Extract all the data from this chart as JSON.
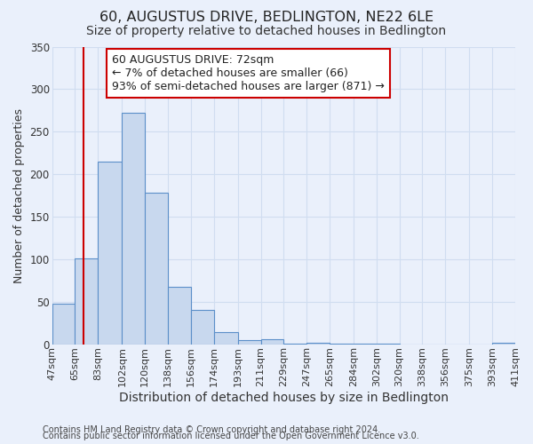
{
  "title": "60, AUGUSTUS DRIVE, BEDLINGTON, NE22 6LE",
  "subtitle": "Size of property relative to detached houses in Bedlington",
  "xlabel": "Distribution of detached houses by size in Bedlington",
  "ylabel": "Number of detached properties",
  "footer_line1": "Contains HM Land Registry data © Crown copyright and database right 2024.",
  "footer_line2": "Contains public sector information licensed under the Open Government Licence v3.0.",
  "bar_edges": [
    47,
    65,
    83,
    102,
    120,
    138,
    156,
    174,
    193,
    211,
    229,
    247,
    265,
    284,
    302,
    320,
    338,
    356,
    375,
    393,
    411
  ],
  "bar_heights": [
    48,
    101,
    215,
    272,
    178,
    67,
    40,
    14,
    5,
    6,
    1,
    2,
    1,
    1,
    1,
    0,
    0,
    0,
    0,
    2
  ],
  "tick_labels": [
    "47sqm",
    "65sqm",
    "83sqm",
    "102sqm",
    "120sqm",
    "138sqm",
    "156sqm",
    "174sqm",
    "193sqm",
    "211sqm",
    "229sqm",
    "247sqm",
    "265sqm",
    "284sqm",
    "302sqm",
    "320sqm",
    "338sqm",
    "356sqm",
    "375sqm",
    "393sqm",
    "411sqm"
  ],
  "ylim": [
    0,
    350
  ],
  "yticks": [
    0,
    50,
    100,
    150,
    200,
    250,
    300,
    350
  ],
  "vline_x": 72,
  "vline_color": "#cc0000",
  "bar_fill_color": "#c8d8ee",
  "bar_edge_color": "#5b8fc9",
  "annotation_title": "60 AUGUSTUS DRIVE: 72sqm",
  "annotation_line2": "← 7% of detached houses are smaller (66)",
  "annotation_line3": "93% of semi-detached houses are larger (871) →",
  "annotation_box_color": "#ffffff",
  "annotation_border_color": "#cc0000",
  "background_color": "#eaf0fb",
  "grid_color": "#d0ddf0",
  "title_fontsize": 11.5,
  "subtitle_fontsize": 10,
  "xlabel_fontsize": 10,
  "ylabel_fontsize": 9,
  "tick_fontsize": 8,
  "annotation_fontsize": 9,
  "footer_fontsize": 7
}
